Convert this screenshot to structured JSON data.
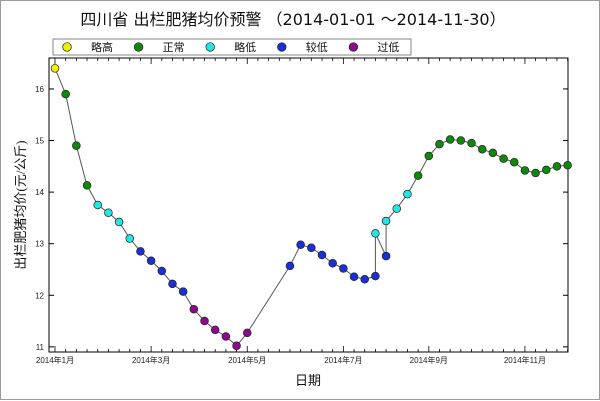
{
  "chart_data": {
    "type": "scatter",
    "title": "四川省 出栏肥猪均价预警 （2014-01-01 ～2014-11-30）",
    "xlabel": "日期",
    "ylabel": "出栏肥猪均价(元/公斤)",
    "ylim": [
      10.9,
      16.6
    ],
    "y_ticks": [
      11,
      12,
      13,
      14,
      15,
      16
    ],
    "x_tick_labels": [
      "2014年1月",
      "2014年3月",
      "2014年5月",
      "2014年7月",
      "2014年9月",
      "2014年11月"
    ],
    "legend_position": "top",
    "legend": [
      {
        "key": "lue_gao",
        "label": "略高",
        "color": "#f2f200"
      },
      {
        "key": "zheng_chang",
        "label": "正常",
        "color": "#0d8a0d"
      },
      {
        "key": "lue_di",
        "label": "略低",
        "color": "#22e6e6"
      },
      {
        "key": "jiao_di",
        "label": "较低",
        "color": "#1a2fd6"
      },
      {
        "key": "guo_di",
        "label": "过低",
        "color": "#8b0b8b"
      }
    ],
    "series": [
      {
        "name": "略高",
        "color": "#f2f200",
        "points": [
          [
            0,
            16.4
          ]
        ]
      },
      {
        "name": "正常",
        "color": "#0d8a0d",
        "points": [
          [
            1,
            15.9
          ],
          [
            2,
            14.9
          ],
          [
            3,
            14.13
          ],
          [
            34,
            14.32
          ],
          [
            35,
            14.7
          ],
          [
            36,
            14.93
          ],
          [
            37,
            15.02
          ],
          [
            38,
            15.0
          ],
          [
            39,
            14.95
          ],
          [
            40,
            14.83
          ],
          [
            41,
            14.76
          ],
          [
            42,
            14.65
          ],
          [
            43,
            14.58
          ],
          [
            44,
            14.42
          ],
          [
            45,
            14.37
          ],
          [
            46,
            14.43
          ],
          [
            47,
            14.5
          ],
          [
            48,
            14.52
          ]
        ]
      },
      {
        "name": "略低",
        "color": "#22e6e6",
        "points": [
          [
            4,
            13.75
          ],
          [
            5,
            13.6
          ],
          [
            6,
            13.42
          ],
          [
            7,
            13.1
          ],
          [
            30,
            13.2
          ],
          [
            31,
            13.44
          ],
          [
            32,
            13.68
          ],
          [
            33,
            13.96
          ]
        ]
      },
      {
        "name": "较低",
        "color": "#1a2fd6",
        "points": [
          [
            8,
            12.85
          ],
          [
            9,
            12.67
          ],
          [
            10,
            12.47
          ],
          [
            11,
            12.22
          ],
          [
            12,
            12.07
          ],
          [
            22,
            12.57
          ],
          [
            23,
            12.98
          ],
          [
            24,
            12.92
          ],
          [
            25,
            12.78
          ],
          [
            26,
            12.62
          ],
          [
            27,
            12.52
          ],
          [
            28,
            12.36
          ],
          [
            29,
            12.31
          ],
          [
            30,
            12.37
          ],
          [
            31,
            12.76
          ]
        ]
      },
      {
        "name": "过低",
        "color": "#8b0b8b",
        "points": [
          [
            13,
            11.73
          ],
          [
            14,
            11.5
          ],
          [
            15,
            11.33
          ],
          [
            16,
            11.2
          ],
          [
            17,
            11.02
          ],
          [
            18,
            11.27
          ]
        ]
      }
    ]
  }
}
